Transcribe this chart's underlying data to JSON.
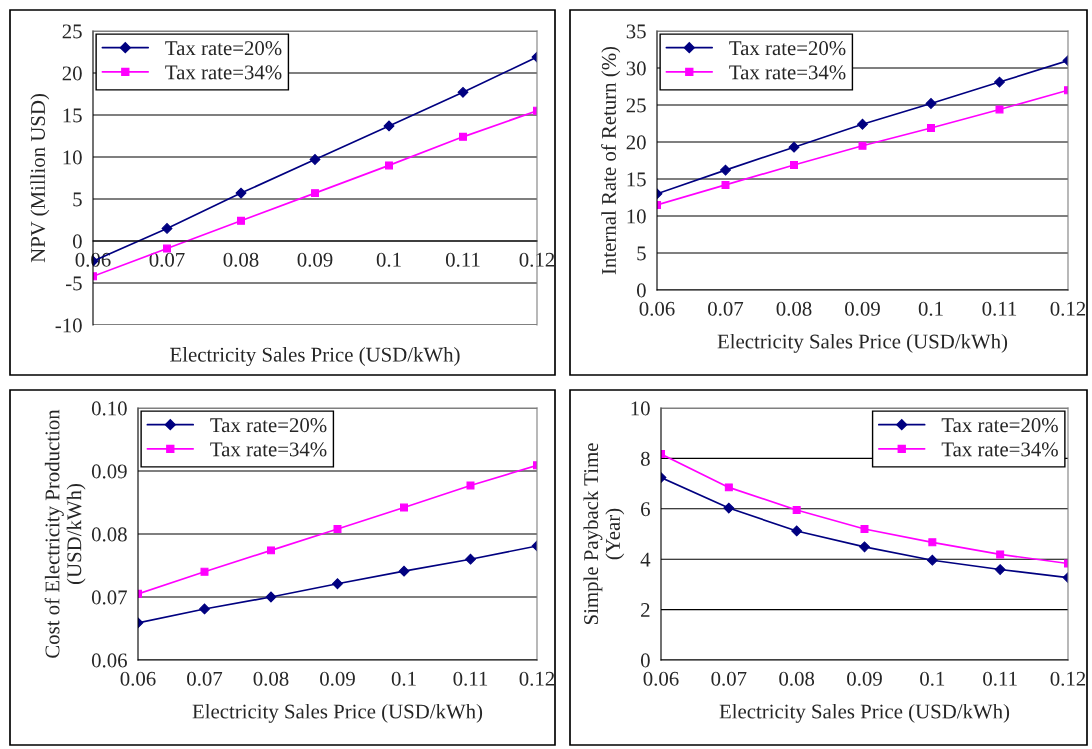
{
  "chart_data": [
    {
      "type": "line",
      "xlabel": "Electricity Sales Price (USD/kWh)",
      "ylabel": "NPV (Million USD)",
      "x": [
        0.06,
        0.07,
        0.08,
        0.09,
        0.1,
        0.11,
        0.12
      ],
      "xlim": [
        0.06,
        0.12
      ],
      "xticks": [
        0.06,
        0.07,
        0.08,
        0.09,
        0.1,
        0.11,
        0.12
      ],
      "ylim": [
        -10,
        25
      ],
      "yticks": [
        -10,
        -5,
        0,
        5,
        10,
        15,
        20,
        25
      ],
      "grid": "y",
      "legend": "top left",
      "series": [
        {
          "name": "Tax rate=20%",
          "color": "#000080",
          "marker": "diamond",
          "values": [
            -2.4,
            1.5,
            5.7,
            9.7,
            13.7,
            17.7,
            21.9
          ]
        },
        {
          "name": "Tax rate=34%",
          "color": "#ff00ff",
          "marker": "square",
          "values": [
            -4.2,
            -0.9,
            2.4,
            5.7,
            9.0,
            12.4,
            15.5
          ]
        }
      ]
    },
    {
      "type": "line",
      "xlabel": "Electricity Sales Price (USD/kWh)",
      "ylabel": "Internal Rate of Return (%)",
      "x": [
        0.06,
        0.07,
        0.08,
        0.09,
        0.1,
        0.11,
        0.12
      ],
      "xlim": [
        0.06,
        0.12
      ],
      "xticks": [
        0.06,
        0.07,
        0.08,
        0.09,
        0.1,
        0.11,
        0.12
      ],
      "ylim": [
        0,
        35
      ],
      "yticks": [
        0,
        5,
        10,
        15,
        20,
        25,
        30,
        35
      ],
      "grid": "y",
      "legend": "top left",
      "series": [
        {
          "name": "Tax rate=20%",
          "color": "#000080",
          "marker": "diamond",
          "values": [
            13.0,
            16.2,
            19.3,
            22.4,
            25.2,
            28.1,
            31.0
          ]
        },
        {
          "name": "Tax rate=34%",
          "color": "#ff00ff",
          "marker": "square",
          "values": [
            11.5,
            14.2,
            16.9,
            19.5,
            21.9,
            24.4,
            27.0
          ]
        }
      ]
    },
    {
      "type": "line",
      "xlabel": "Electricity Sales Price (USD/kWh)",
      "ylabel": "Cost of Electricity Production\n(USD/kWh)",
      "x": [
        0.06,
        0.07,
        0.08,
        0.09,
        0.1,
        0.11,
        0.12
      ],
      "xlim": [
        0.06,
        0.12
      ],
      "xticks": [
        0.06,
        0.07,
        0.08,
        0.09,
        0.1,
        0.11,
        0.12
      ],
      "ylim": [
        0.06,
        0.1
      ],
      "yticks": [
        0.06,
        0.07,
        0.08,
        0.09,
        {
          "value": 0.1,
          "label": "0.10"
        }
      ],
      "grid": "y",
      "legend": "top left",
      "series": [
        {
          "name": "Tax rate=20%",
          "color": "#000080",
          "marker": "diamond",
          "values": [
            0.0659,
            0.0681,
            0.07,
            0.0721,
            0.0741,
            0.076,
            0.0781
          ]
        },
        {
          "name": "Tax rate=34%",
          "color": "#ff00ff",
          "marker": "square",
          "values": [
            0.0705,
            0.074,
            0.0774,
            0.0808,
            0.0842,
            0.0877,
            0.0909
          ]
        }
      ]
    },
    {
      "type": "line",
      "xlabel": "Electricity Sales Price (USD/kWh)",
      "ylabel": "Simple Payback Time\n(Year)",
      "x": [
        0.06,
        0.07,
        0.08,
        0.09,
        0.1,
        0.11,
        0.12
      ],
      "xlim": [
        0.06,
        0.12
      ],
      "xticks": [
        0.06,
        0.07,
        0.08,
        0.09,
        0.1,
        0.11,
        0.12
      ],
      "ylim": [
        0,
        10
      ],
      "yticks": [
        0,
        2,
        4,
        6,
        8,
        10
      ],
      "grid": "y",
      "legend": "top right",
      "series": [
        {
          "name": "Tax rate=20%",
          "color": "#000080",
          "marker": "diamond",
          "values": [
            7.24,
            6.03,
            5.12,
            4.49,
            3.96,
            3.59,
            3.27
          ]
        },
        {
          "name": "Tax rate=34%",
          "color": "#ff00ff",
          "marker": "square",
          "values": [
            8.17,
            6.85,
            5.95,
            5.2,
            4.67,
            4.19,
            3.83
          ]
        }
      ]
    }
  ]
}
